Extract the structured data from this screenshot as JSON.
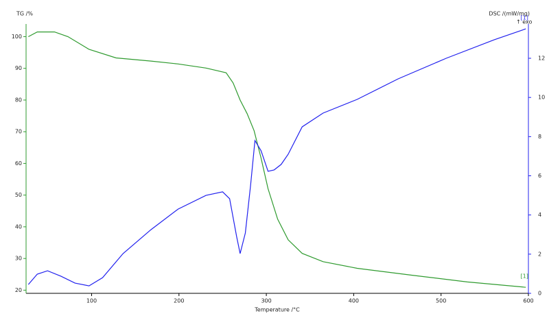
{
  "chart_data": {
    "type": "line",
    "ylabel": "TG /%",
    "y2label": "DSC /(mW/mg)",
    "xlabel": "Temperature /°C",
    "exo_label": "↑ exo",
    "xlim": [
      25,
      600
    ],
    "xticks": [
      100,
      200,
      300,
      400,
      500,
      600
    ],
    "ylim": [
      19,
      104
    ],
    "yticks": [
      20,
      30,
      40,
      50,
      60,
      70,
      80,
      90,
      100
    ],
    "y2lim": [
      0,
      13.75
    ],
    "y2ticks": [
      0,
      2,
      4,
      6,
      8,
      10,
      12
    ],
    "series": [
      {
        "label": "[1]",
        "color": "#2e9a2e",
        "x": [
          27.6,
          37.8,
          57.5,
          73,
          97,
          128,
          168,
          199,
          231,
          254,
          262,
          270,
          278,
          286,
          294,
          302,
          313,
          325,
          341,
          365,
          404,
          467,
          530,
          597
        ],
        "values": [
          100,
          101.5,
          101.5,
          100,
          96,
          93.3,
          92.3,
          91.4,
          90.1,
          88.6,
          85.4,
          80,
          75.7,
          70.3,
          61.7,
          52,
          42.4,
          35.9,
          31.6,
          29,
          26.9,
          24.7,
          22.6,
          20.9
        ]
      },
      {
        "label": "[1]",
        "color": "#2020ee",
        "axis": "y2",
        "x": [
          27.6,
          37.8,
          49.6,
          65,
          81,
          97,
          112.6,
          136,
          168,
          199,
          231,
          250,
          258,
          266,
          270,
          276,
          282,
          287,
          294,
          302,
          309,
          317,
          325,
          341,
          365,
          404,
          451,
          506,
          561,
          597
        ],
        "values": [
          0.45,
          0.98,
          1.15,
          0.87,
          0.52,
          0.38,
          0.8,
          2.03,
          3.25,
          4.3,
          5.0,
          5.18,
          4.83,
          2.9,
          2.03,
          3.08,
          5.53,
          7.8,
          7.28,
          6.23,
          6.3,
          6.58,
          7.1,
          8.5,
          9.2,
          9.9,
          10.95,
          12.0,
          12.95,
          13.5
        ]
      }
    ]
  }
}
